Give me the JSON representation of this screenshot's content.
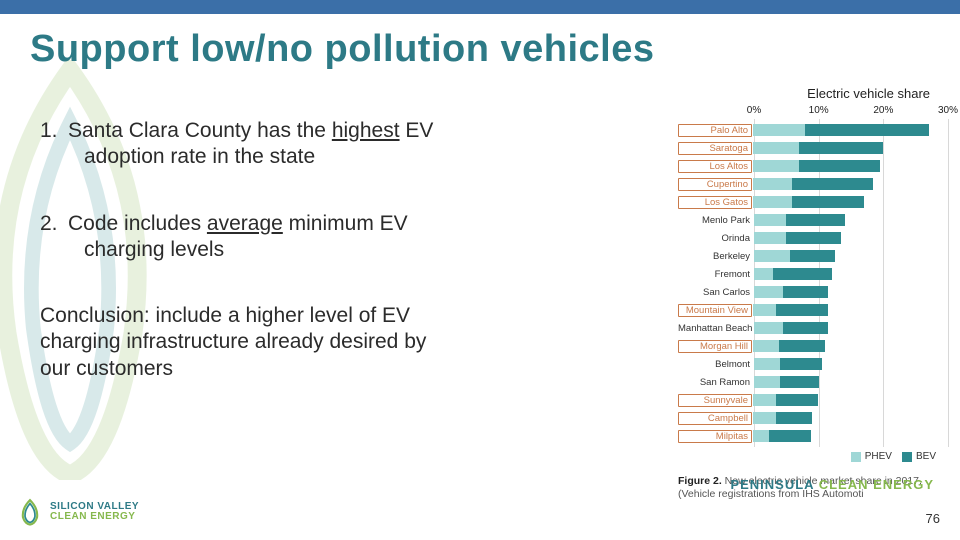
{
  "colors": {
    "topbar": "#3b6fa8",
    "title": "#2d7a86",
    "phev": "#9fd7d6",
    "bev": "#2d8a8f",
    "boxed_border": "#c97a4a",
    "grid": "#d8d8d8"
  },
  "title": "Support low/no pollution vehicles",
  "bullets": {
    "item1_num": "1.",
    "item1_a": "Santa Clara County has the ",
    "item1_u": "highest",
    "item1_b": " EV",
    "item1_c": "adoption rate in the state",
    "item2_num": "2.",
    "item2_a": "Code includes ",
    "item2_u": "average",
    "item2_b": " minimum EV",
    "item2_c": "charging levels",
    "concl_a": "Conclusion:  include a higher level of EV",
    "concl_b": "charging infrastructure already desired by",
    "concl_c": "our customers"
  },
  "chart": {
    "title": "Electric vehicle share",
    "x_ticks": [
      "0%",
      "10%",
      "20%",
      "30%"
    ],
    "x_max": 30,
    "series": [
      {
        "name": "PHEV",
        "color": "#9fd7d6"
      },
      {
        "name": "BEV",
        "color": "#2d8a8f"
      }
    ],
    "rows": [
      {
        "label": "Palo Alto",
        "boxed": true,
        "phev": 8.0,
        "bev": 19.0
      },
      {
        "label": "Saratoga",
        "boxed": true,
        "phev": 7.0,
        "bev": 13.0
      },
      {
        "label": "Los Altos",
        "boxed": true,
        "phev": 7.0,
        "bev": 12.5
      },
      {
        "label": "Cupertino",
        "boxed": true,
        "phev": 6.0,
        "bev": 12.5
      },
      {
        "label": "Los Gatos",
        "boxed": true,
        "phev": 6.0,
        "bev": 11.0
      },
      {
        "label": "Menlo Park",
        "boxed": false,
        "phev": 5.0,
        "bev": 9.0
      },
      {
        "label": "Orinda",
        "boxed": false,
        "phev": 5.0,
        "bev": 8.5
      },
      {
        "label": "Berkeley",
        "boxed": false,
        "phev": 5.5,
        "bev": 7.0
      },
      {
        "label": "Fremont",
        "boxed": false,
        "phev": 3.0,
        "bev": 9.0
      },
      {
        "label": "San Carlos",
        "boxed": false,
        "phev": 4.5,
        "bev": 7.0
      },
      {
        "label": "Mountain View",
        "boxed": true,
        "phev": 3.5,
        "bev": 8.0
      },
      {
        "label": "Manhattan Beach",
        "boxed": false,
        "phev": 4.5,
        "bev": 7.0
      },
      {
        "label": "Morgan Hill",
        "boxed": true,
        "phev": 4.0,
        "bev": 7.0
      },
      {
        "label": "Belmont",
        "boxed": false,
        "phev": 4.0,
        "bev": 6.5
      },
      {
        "label": "San Ramon",
        "boxed": false,
        "phev": 4.0,
        "bev": 6.0
      },
      {
        "label": "Sunnyvale",
        "boxed": true,
        "phev": 3.5,
        "bev": 6.5
      },
      {
        "label": "Campbell",
        "boxed": true,
        "phev": 3.5,
        "bev": 5.5
      },
      {
        "label": "Milpitas",
        "boxed": true,
        "phev": 2.5,
        "bev": 6.5
      }
    ],
    "caption_bold": "Figure 2.",
    "caption_rest": " New electric vehicle market share in 2017. (Vehicle registrations from IHS Automoti"
  },
  "footer": {
    "left_line1": "SILICON VALLEY",
    "left_line2": "CLEAN ENERGY",
    "right_a": "PENINSULA",
    "right_b": "CLEAN ENERGY"
  },
  "page_number": "76"
}
